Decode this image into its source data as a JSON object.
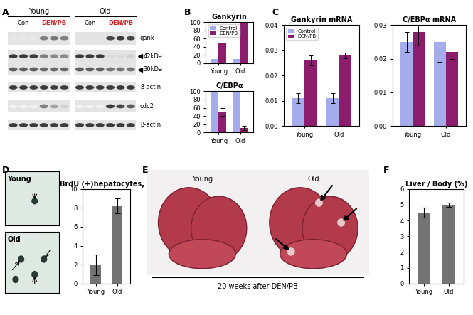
{
  "panel_labels": [
    "A",
    "B",
    "C",
    "D",
    "E",
    "F"
  ],
  "blot": {
    "groups": [
      "Young",
      "Old"
    ],
    "treatments": [
      "Con",
      "DEN/PB",
      "Con",
      "DEN/PB"
    ],
    "rows": [
      "gank",
      "42kDa",
      "30kDa",
      "β-actin",
      "cdc2",
      "β-actin"
    ]
  },
  "micrographs": {
    "labels": [
      "Young",
      "Old"
    ]
  },
  "photo": {
    "labels": [
      "Young",
      "Old"
    ],
    "caption": "20 weeks after DEN/PB"
  },
  "chart_data": [
    {
      "type": "bar",
      "title": "Gankyrin",
      "categories": [
        "Young",
        "Old"
      ],
      "series": [
        {
          "name": "Control",
          "color": "#a4acec",
          "values": [
            10,
            10
          ]
        },
        {
          "name": "DEN/PB",
          "color": "#8c1c6c",
          "values": [
            50,
            100
          ]
        }
      ],
      "ylim": [
        0,
        100
      ],
      "yticks": [
        0,
        20,
        40,
        60,
        80,
        100
      ],
      "legend": "upper left"
    },
    {
      "type": "bar",
      "title": "C/EBPα",
      "categories": [
        "Young",
        "Old"
      ],
      "series": [
        {
          "name": "Control",
          "color": "#a4acec",
          "values": [
            100,
            100
          ]
        },
        {
          "name": "DEN/PB",
          "color": "#8c1c6c",
          "values": [
            50,
            10
          ],
          "errors": [
            10,
            5
          ]
        }
      ],
      "ylim": [
        0,
        100
      ],
      "yticks": [
        0,
        20,
        40,
        60,
        80,
        100
      ]
    },
    {
      "type": "bar",
      "title": "Gankyrin mRNA",
      "categories": [
        "Young",
        "Old"
      ],
      "series": [
        {
          "name": "Control",
          "color": "#a4acec",
          "values": [
            0.011,
            0.011
          ],
          "errors": [
            0.002,
            0.002
          ]
        },
        {
          "name": "DEN/PB",
          "color": "#8c1c6c",
          "values": [
            0.026,
            0.028
          ],
          "errors": [
            0.002,
            0.001
          ]
        }
      ],
      "ylim": [
        0,
        0.04
      ],
      "yticks": [
        {
          "value": 0,
          "label": "0.00"
        },
        0.01,
        0.02,
        0.03,
        0.04
      ],
      "legend": "upper left"
    },
    {
      "type": "bar",
      "title": "C/EBPα mRNA",
      "categories": [
        "Young",
        "Old"
      ],
      "series": [
        {
          "name": "Control",
          "color": "#a4acec",
          "values": [
            0.025,
            0.025
          ],
          "errors": [
            0.003,
            0.006
          ]
        },
        {
          "name": "DEN/PB",
          "color": "#8c1c6c",
          "values": [
            0.028,
            0.022
          ],
          "errors": [
            0.004,
            0.002
          ]
        }
      ],
      "ylim": [
        0,
        0.03
      ],
      "yticks": [
        {
          "value": 0,
          "label": "0.00"
        },
        0.01,
        0.02,
        0.03
      ]
    },
    {
      "type": "bar",
      "title": "BrdU (+)hepatocytes, %",
      "categories": [
        "Young",
        "Old"
      ],
      "values": [
        2,
        8.2
      ],
      "errors": [
        1.1,
        0.8
      ],
      "color": "#737373",
      "ylim": [
        0,
        10
      ],
      "yticks": [
        0,
        2,
        4,
        6,
        8,
        10
      ]
    },
    {
      "type": "bar",
      "title": "Liver / Body (%)",
      "categories": [
        "Young",
        "Old"
      ],
      "values": [
        4.5,
        5
      ],
      "errors": [
        0.3,
        0.15
      ],
      "color": "#737373",
      "ylim": [
        0,
        6
      ],
      "yticks": [
        0,
        1,
        2,
        3,
        4,
        5,
        6
      ]
    }
  ]
}
